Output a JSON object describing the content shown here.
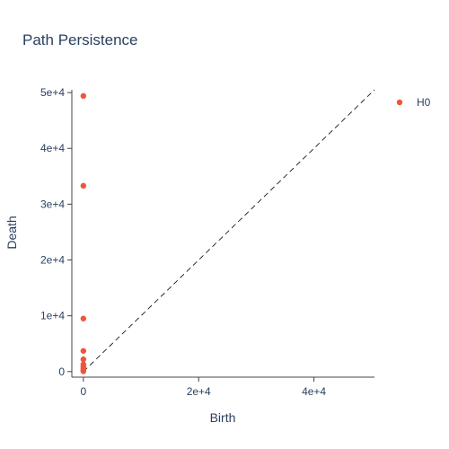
{
  "chart_data": {
    "type": "scatter",
    "title": "Path Persistence",
    "xlabel": "Birth",
    "ylabel": "Death",
    "xlim": [
      -2000,
      50500
    ],
    "ylim": [
      -1000,
      50500
    ],
    "x_ticks": [
      {
        "value": 0,
        "label": "0"
      },
      {
        "value": 20000,
        "label": "2e+4"
      },
      {
        "value": 40000,
        "label": "4e+4"
      }
    ],
    "y_ticks": [
      {
        "value": 0,
        "label": "0"
      },
      {
        "value": 10000,
        "label": "1e+4"
      },
      {
        "value": 20000,
        "label": "2e+4"
      },
      {
        "value": 30000,
        "label": "3e+4"
      },
      {
        "value": 40000,
        "label": "4e+4"
      },
      {
        "value": 50000,
        "label": "5e+4"
      }
    ],
    "diagonal": true,
    "grid": false,
    "legend_position": "top-right",
    "series": [
      {
        "name": "H0",
        "color": "#EF553B",
        "points": [
          {
            "x": 0,
            "y": 49400
          },
          {
            "x": 0,
            "y": 33300
          },
          {
            "x": 0,
            "y": 9500
          },
          {
            "x": 0,
            "y": 3700
          },
          {
            "x": 0,
            "y": 2200
          },
          {
            "x": 0,
            "y": 1300
          },
          {
            "x": 0,
            "y": 900
          },
          {
            "x": 0,
            "y": 500
          },
          {
            "x": 0,
            "y": 200
          },
          {
            "x": 0,
            "y": 50
          }
        ]
      }
    ]
  }
}
